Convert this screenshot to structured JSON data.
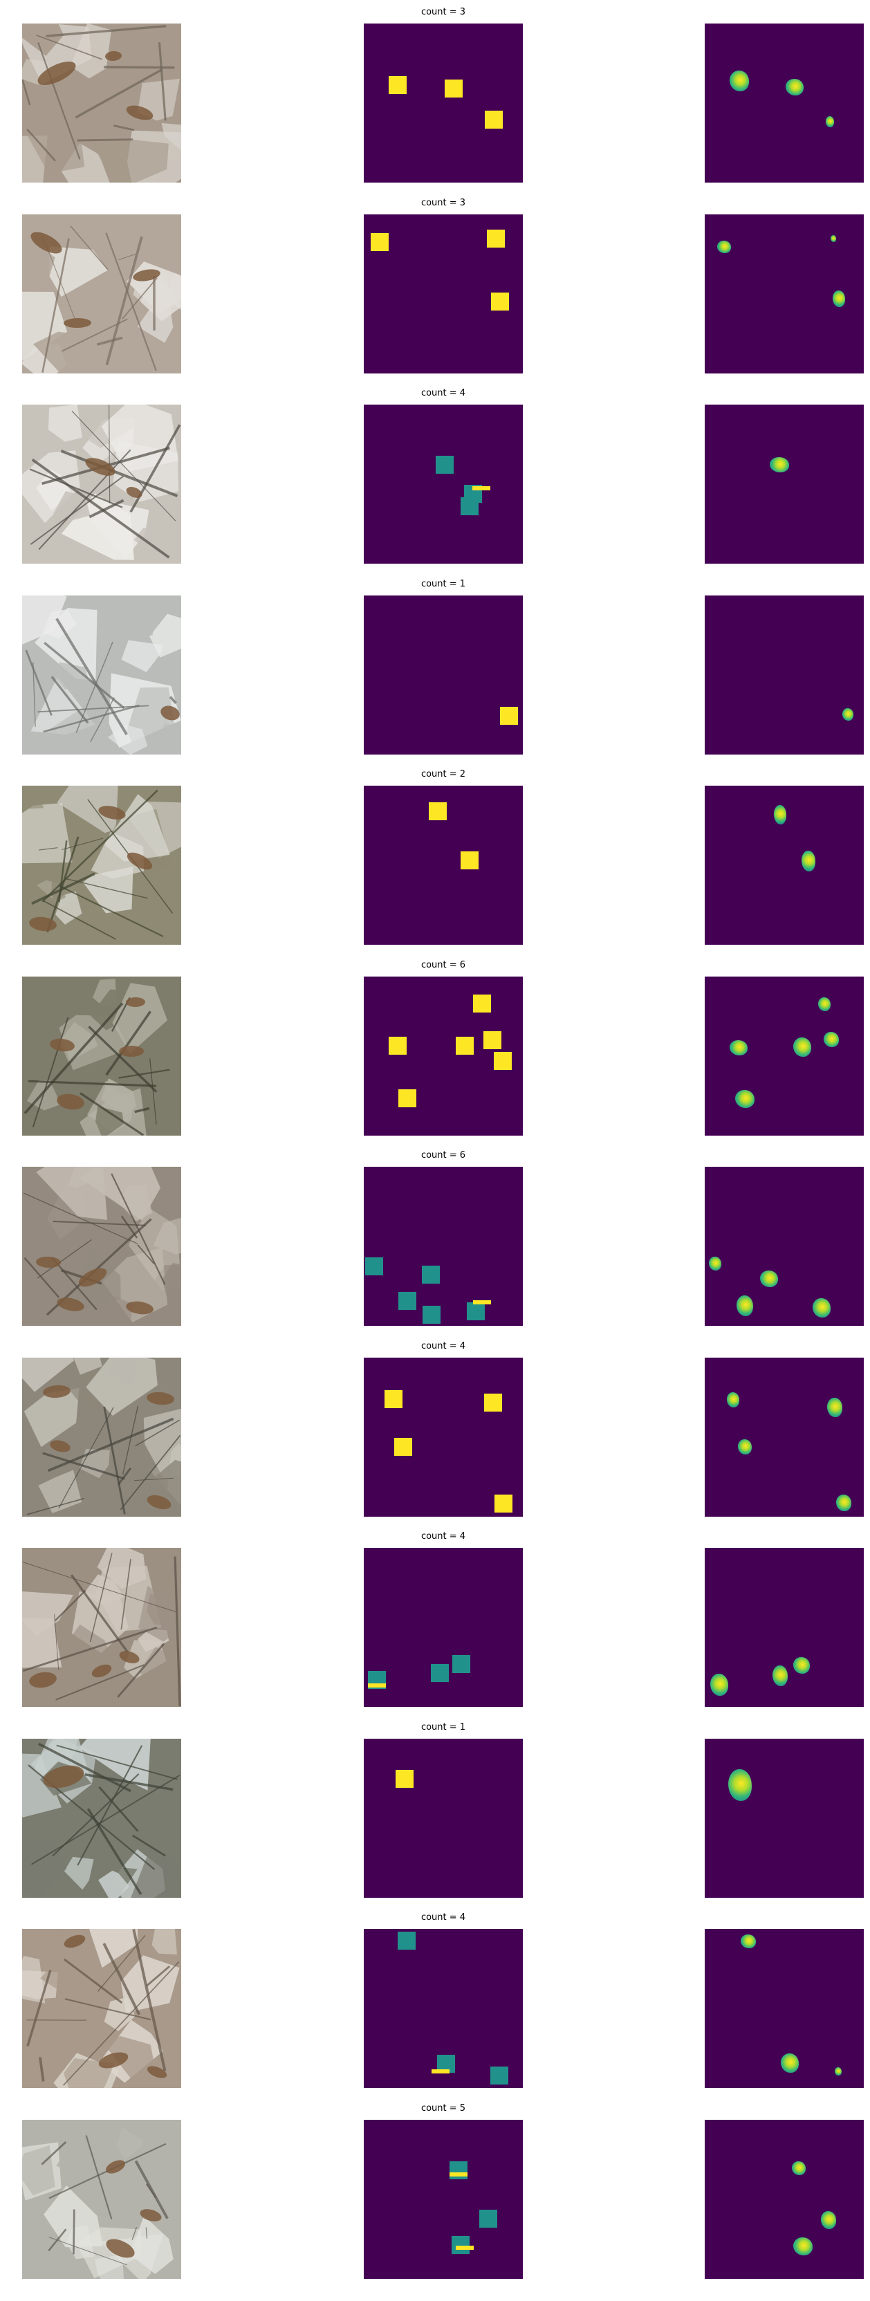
{
  "colors": {
    "background": "#440154",
    "box_full": "#fde725",
    "box_half": "#21918c",
    "pred_core": "#b5de2b",
    "pred_edge": "#35b779"
  },
  "rows": [
    {
      "title": "count = 3",
      "count": 3,
      "palette": [
        "#a79a8c",
        "#d8d3cc",
        "#6f6559"
      ]
    },
    {
      "title": "count = 3",
      "count": 3,
      "palette": [
        "#b3a79b",
        "#e1ddd8",
        "#7b6e61"
      ]
    },
    {
      "title": "count = 4",
      "count": 4,
      "palette": [
        "#c7c2ba",
        "#ecebe7",
        "#4f4b44"
      ]
    },
    {
      "title": "count = 1",
      "count": 1,
      "palette": [
        "#b9bcb9",
        "#e9ebea",
        "#6a6d69"
      ]
    },
    {
      "title": "count = 2",
      "count": 2,
      "palette": [
        "#8f8a74",
        "#dcdcd5",
        "#414631"
      ]
    },
    {
      "title": "count = 6",
      "count": 6,
      "palette": [
        "#7e7c6a",
        "#b4b2a4",
        "#3d3d31"
      ]
    },
    {
      "title": "count = 6",
      "count": 6,
      "palette": [
        "#948a7f",
        "#c4bdb3",
        "#524a42"
      ]
    },
    {
      "title": "count = 4",
      "count": 4,
      "palette": [
        "#8d877b",
        "#c6c3ba",
        "#47463f"
      ]
    },
    {
      "title": "count = 4",
      "count": 4,
      "palette": [
        "#9c9083",
        "#d0c8bf",
        "#5b5147"
      ]
    },
    {
      "title": "count = 1",
      "count": 1,
      "palette": [
        "#7a7c70",
        "#c9d1cf",
        "#3f4237"
      ]
    },
    {
      "title": "count = 4",
      "count": 4,
      "palette": [
        "#a8998a",
        "#dcd5cc",
        "#65574a"
      ]
    },
    {
      "title": "count = 5",
      "count": 5,
      "palette": [
        "#b3b3ab",
        "#e3e3df",
        "#5d5b52"
      ]
    }
  ]
}
